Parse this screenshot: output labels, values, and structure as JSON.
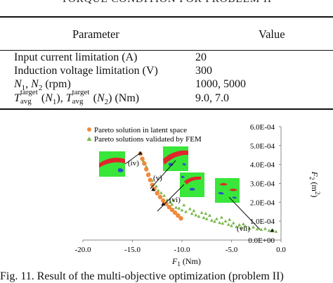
{
  "table": {
    "caption": "TORQUE CONDITION FOR PROBLEM II",
    "headers": [
      "Parameter",
      "Value"
    ],
    "rows": [
      {
        "param": "Input current limitation (A)",
        "value": "20"
      },
      {
        "param": "Induction voltage limitation (V)",
        "value": "300"
      },
      {
        "param": "N1, N2 (rpm)",
        "value": "1000, 5000"
      },
      {
        "param": "Tavg target (N1), Tavg target (N2) (Nm)",
        "value": "9.0, 7.0"
      }
    ]
  },
  "figure": {
    "caption": "Fig. 11.   Result of the multi-objective optimization (problem II)",
    "legend": [
      "Pareto solution in latent space",
      "Pareto solutions validated by FEM"
    ],
    "annotations": [
      "(iv)",
      "(v)",
      "(vi)",
      "(vii)"
    ],
    "colors": {
      "latent": "#f08a3c",
      "fem": "#79b84a",
      "green": "#39e63a",
      "red": "#e0252b",
      "blue": "#2a52c8"
    }
  },
  "chart_data": {
    "type": "scatter",
    "xlabel": "F1 (Nm)",
    "ylabel": "F2 (m2)",
    "xlim": [
      -20.0,
      0.0
    ],
    "ylim": [
      0.0,
      0.0006
    ],
    "x_ticks": [
      "-20.0",
      "-15.0",
      "-10.0",
      "-5.0",
      "0.0"
    ],
    "y_ticks": [
      "0.0E+00",
      "1.0E-04",
      "2.0E-04",
      "3.0E-04",
      "4.0E-04",
      "5.0E-04",
      "6.0E-04"
    ],
    "legend_position": "top-left",
    "grid": false,
    "series": [
      {
        "name": "Pareto solution in latent space",
        "marker": "circle",
        "points": [
          [
            -14.2,
            0.000457
          ],
          [
            -14.0,
            0.00043
          ],
          [
            -13.8,
            0.000405
          ],
          [
            -13.6,
            0.000375
          ],
          [
            -13.4,
            0.000345
          ],
          [
            -13.2,
            0.000318
          ],
          [
            -13.0,
            0.000292
          ],
          [
            -12.8,
            0.00027
          ],
          [
            -12.5,
            0.000248
          ],
          [
            -12.2,
            0.000228
          ],
          [
            -11.9,
            0.000209
          ],
          [
            -11.6,
            0.000192
          ],
          [
            -11.3,
            0.000175
          ],
          [
            -11.0,
            0.00016
          ],
          [
            -10.7,
            0.000145
          ],
          [
            -10.4,
            0.00013
          ],
          [
            -10.1,
            0.000115
          ]
        ]
      },
      {
        "name": "Pareto solutions validated by FEM",
        "marker": "triangle",
        "points": [
          [
            -14.2,
            0.00046
          ],
          [
            -13.9,
            0.00042
          ],
          [
            -13.6,
            0.000388
          ],
          [
            -13.3,
            0.000352
          ],
          [
            -13.0,
            0.000315
          ],
          [
            -12.6,
            0.000285
          ],
          [
            -12.4,
            0.000262
          ],
          [
            -12.1,
            0.00025
          ],
          [
            -11.8,
            0.000235
          ],
          [
            -11.5,
            0.000212
          ],
          [
            -11.2,
            0.0002
          ],
          [
            -11.0,
            0.000188
          ],
          [
            -10.6,
            0.000172
          ],
          [
            -10.3,
            0.000168
          ],
          [
            -10.0,
            0.000158
          ],
          [
            -9.6,
            0.00015
          ],
          [
            -9.2,
            0.000165
          ],
          [
            -9.0,
            0.00014
          ],
          [
            -8.6,
            0.000132
          ],
          [
            -8.3,
            0.000125
          ],
          [
            -8.0,
            0.000145
          ],
          [
            -7.8,
            0.000118
          ],
          [
            -7.5,
            0.000112
          ],
          [
            -7.2,
            0.00013
          ],
          [
            -7.0,
            0.000104
          ],
          [
            -6.7,
            9.8e-05
          ],
          [
            -6.5,
            0.000112
          ],
          [
            -6.2,
            9.2e-05
          ],
          [
            -5.9,
            8.8e-05
          ],
          [
            -5.6,
            0.0001
          ],
          [
            -5.3,
            8.2e-05
          ],
          [
            -5.0,
            7.5e-05
          ],
          [
            -4.8,
            9e-05
          ],
          [
            -4.5,
            7e-05
          ],
          [
            -4.2,
            8e-05
          ],
          [
            -4.0,
            6.5e-05
          ],
          [
            -3.6,
            7.2e-05
          ],
          [
            -3.2,
            6.2e-05
          ],
          [
            -2.8,
            6.8e-05
          ],
          [
            -2.4,
            5.8e-05
          ],
          [
            -2.0,
            5.5e-05
          ],
          [
            -1.6,
            6e-05
          ],
          [
            -1.2,
            5e-05
          ],
          [
            -0.8,
            5.2e-05
          ],
          [
            -0.5,
            4.5e-05
          ],
          [
            -10.9,
            0.00021
          ],
          [
            -9.8,
            0.000185
          ],
          [
            -8.8,
            0.000155
          ],
          [
            -7.6,
            0.00014
          ],
          [
            -6.0,
            0.00012
          ],
          [
            -5.2,
            0.000108
          ],
          [
            -3.8,
            8.5e-05
          ]
        ]
      }
    ]
  }
}
